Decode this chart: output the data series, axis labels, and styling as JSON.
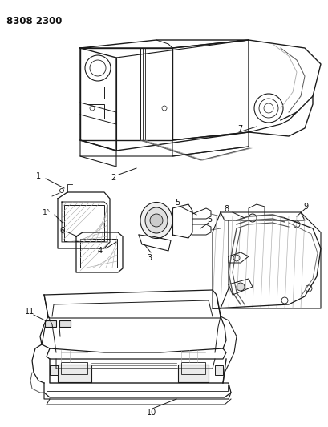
{
  "title_code": "8308 2300",
  "bg_color": "#ffffff",
  "line_color": "#1a1a1a",
  "med_line": "#555555",
  "light_line": "#aaaaaa",
  "label_color": "#111111",
  "title_fontsize": 8.5,
  "label_fontsize": 7,
  "fig_width": 4.1,
  "fig_height": 5.33,
  "dpi": 100
}
